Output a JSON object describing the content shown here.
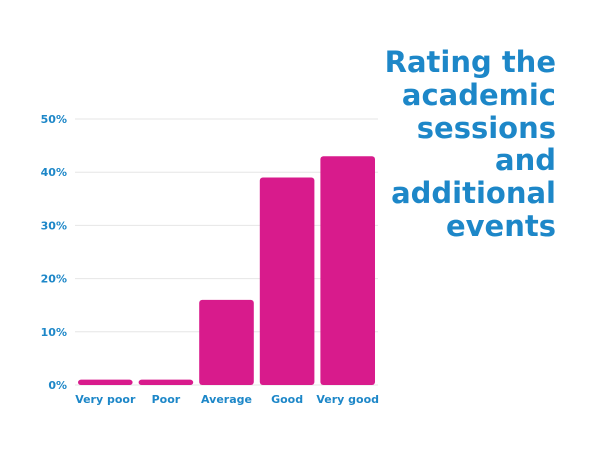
{
  "chart_data": {
    "type": "bar",
    "title": "Rating the academic sessions and additional events",
    "xlabel": "",
    "ylabel": "",
    "categories": [
      "Very poor",
      "Poor",
      "Average",
      "Good",
      "Very good"
    ],
    "values": [
      1,
      1,
      16,
      39,
      43
    ],
    "ylim": [
      0,
      50
    ],
    "yticks": [
      "0%",
      "10%",
      "20%",
      "30%",
      "40%",
      "50%"
    ],
    "grid": true,
    "legend": "none"
  },
  "colors": {
    "bar": "#d81b8c",
    "axis_text": "#1d87c8",
    "title": "#1d87c8",
    "grid": "#e6e6e6"
  }
}
